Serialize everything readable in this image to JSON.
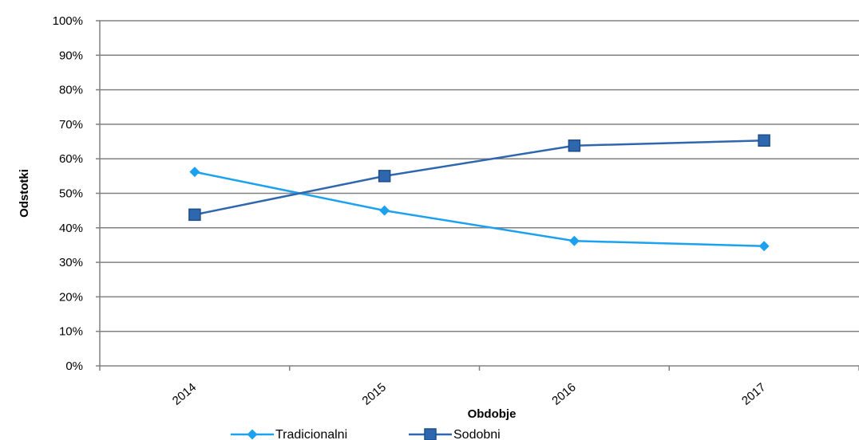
{
  "chart_data": {
    "type": "line",
    "categories": [
      "2014",
      "2015",
      "2016",
      "2017"
    ],
    "series": [
      {
        "name": "Tradicionalni",
        "values": [
          56.2,
          45.0,
          36.2,
          34.7
        ],
        "color": "#1BA1F0",
        "marker": "diamond"
      },
      {
        "name": "Sodobni",
        "values": [
          43.8,
          55.0,
          63.8,
          65.3
        ],
        "color": "#2E67AE",
        "marker": "square"
      }
    ],
    "xlabel": "Obdobje",
    "ylabel": "Odstotki",
    "ylim": [
      0,
      100
    ],
    "yticks": [
      "0%",
      "10%",
      "20%",
      "30%",
      "40%",
      "50%",
      "60%",
      "70%",
      "80%",
      "90%",
      "100%"
    ],
    "grid": true,
    "legend_position": "bottom"
  }
}
